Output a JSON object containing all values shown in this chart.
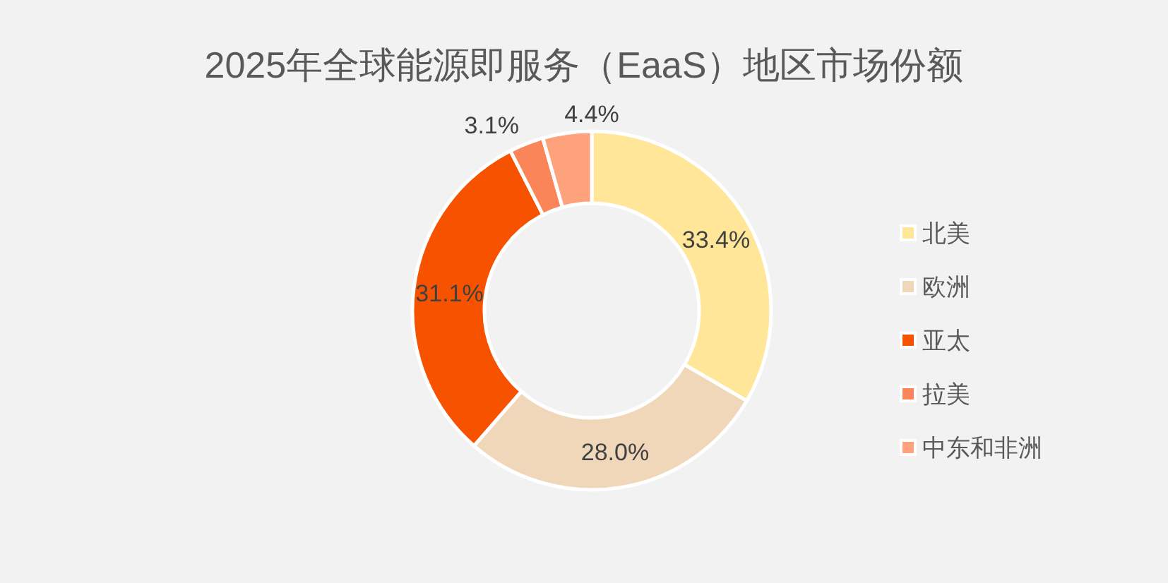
{
  "chart_data": {
    "type": "donut",
    "title": "2025年全球能源即服务（EaaS）地区市场份额",
    "categories": [
      "北美",
      "欧洲",
      "亚太",
      "拉美",
      "中东和非洲"
    ],
    "values": [
      33.4,
      28.0,
      31.1,
      3.1,
      4.4
    ],
    "colors": [
      "#ffe699",
      "#f0d7b9",
      "#f65200",
      "#f98558",
      "#fda27a"
    ],
    "value_labels": [
      "33.4%",
      "28.0%",
      "31.1%",
      "3.1%",
      "4.4%"
    ],
    "legend": "right"
  }
}
